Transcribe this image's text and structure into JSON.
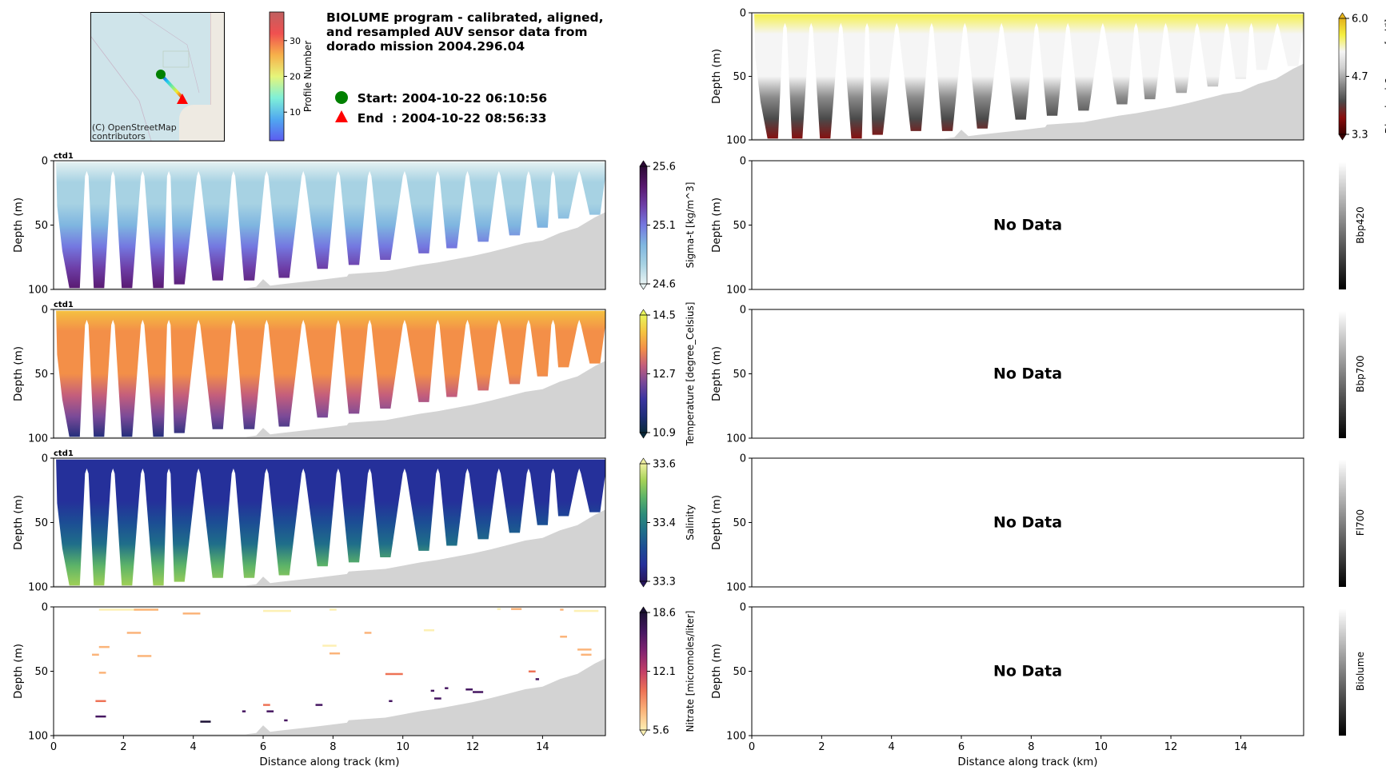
{
  "header": {
    "title_lines": [
      "BIOLUME program - calibrated, aligned,",
      "and resampled AUV sensor data from",
      "dorado mission 2004.296.04"
    ],
    "start_label": "Start: 2004-10-22 06:10:56",
    "end_label": "End  : 2004-10-22 08:56:33",
    "start_marker_color": "#008000",
    "end_marker_color": "#ff0000"
  },
  "map": {
    "attribution_lines": [
      "(C) OpenStreetMap",
      "contributors"
    ],
    "profile_colorbar": {
      "label": "Profile Number",
      "ticks": [
        "10",
        "20",
        "30"
      ],
      "range": [
        2,
        38
      ],
      "colormap": "jet"
    }
  },
  "chart_data": [
    {
      "type": "heatmap",
      "id": "sigma_t",
      "panel_tag": "ctd1",
      "variable": "Sigma-t [kg/m^3]",
      "xlabel": "",
      "ylabel": "Depth (m)",
      "xlim": [
        0,
        15.8
      ],
      "ylim": [
        100,
        0
      ],
      "yticks": [
        "0",
        "50",
        "100"
      ],
      "colorbar": {
        "label": "Sigma-t [kg/m^3]",
        "ticks": [
          "25.6",
          "25.1",
          "24.6"
        ],
        "range": [
          24.6,
          25.6
        ],
        "extend": "both",
        "stops": [
          "#e8f3f3",
          "#a7d2e3",
          "#7fb6e0",
          "#7478e0",
          "#6e3fa8",
          "#58186e",
          "#2c0a35"
        ]
      },
      "surface_value_fraction": 0.05,
      "deep_value_fraction": 0.9
    },
    {
      "type": "heatmap",
      "id": "temperature",
      "panel_tag": "ctd1",
      "variable": "Temperature [degree_Celsius]",
      "xlabel": "",
      "ylabel": "Depth (m)",
      "xlim": [
        0,
        15.8
      ],
      "ylim": [
        100,
        0
      ],
      "yticks": [
        "0",
        "50",
        "100"
      ],
      "colorbar": {
        "label": "Temperature [degree_Celsius]",
        "ticks": [
          "14.5",
          "12.7",
          "10.9"
        ],
        "range": [
          10.9,
          14.5
        ],
        "extend": "both",
        "stops": [
          "#0a2a3c",
          "#1f2d7a",
          "#3a35a0",
          "#7a4a98",
          "#c45e7c",
          "#f38f48",
          "#f5c440",
          "#e9f55a"
        ]
      },
      "surface_value_fraction": 0.82,
      "deep_value_fraction": 0.2
    },
    {
      "type": "heatmap",
      "id": "salinity",
      "panel_tag": "ctd1",
      "variable": "Salinity",
      "xlabel": "",
      "ylabel": "Depth (m)",
      "xlim": [
        0,
        15.8
      ],
      "ylim": [
        100,
        0
      ],
      "yticks": [
        "0",
        "50",
        "100"
      ],
      "colorbar": {
        "label": "Salinity",
        "ticks": [
          "33.6",
          "33.4",
          "33.3"
        ],
        "range": [
          33.3,
          33.6
        ],
        "extend": "both",
        "stops": [
          "#28175e",
          "#25309a",
          "#1c4d94",
          "#1f6e8a",
          "#2c8c7a",
          "#5cb368",
          "#a4d256",
          "#f0f0a0"
        ]
      },
      "surface_value_fraction": 0.12,
      "deep_value_fraction": 0.85
    },
    {
      "type": "scatter",
      "id": "nitrate",
      "panel_tag": "",
      "variable": "Nitrate [micromoles/liter]",
      "xlabel": "Distance along track (km)",
      "ylabel": "Depth (m)",
      "xlim": [
        0,
        15.8
      ],
      "ylim": [
        100,
        0
      ],
      "xticks": [
        "0",
        "2",
        "4",
        "6",
        "8",
        "10",
        "12",
        "14"
      ],
      "yticks": [
        "0",
        "50",
        "100"
      ],
      "colorbar": {
        "label": "Nitrate [micromoles/liter]",
        "ticks": [
          "18.6",
          "12.1",
          "5.6"
        ],
        "range": [
          5.6,
          18.6
        ],
        "extend": "both",
        "stops": [
          "#fdf0b4",
          "#fbb47a",
          "#ee7356",
          "#c33e67",
          "#832471",
          "#461761",
          "#1b1034"
        ]
      },
      "segments": [
        {
          "x0": 1.3,
          "x1": 3.0,
          "depth": 2,
          "value": 6.5
        },
        {
          "x0": 2.3,
          "x1": 3.0,
          "depth": 2,
          "value": 7.0
        },
        {
          "x0": 3.7,
          "x1": 4.2,
          "depth": 5,
          "value": 7.5
        },
        {
          "x0": 6.0,
          "x1": 6.8,
          "depth": 3,
          "value": 6.0
        },
        {
          "x0": 7.9,
          "x1": 8.1,
          "depth": 2,
          "value": 6.0
        },
        {
          "x0": 12.7,
          "x1": 12.8,
          "depth": 1.5,
          "value": 6.5
        },
        {
          "x0": 13.1,
          "x1": 13.4,
          "depth": 1.5,
          "value": 6.8
        },
        {
          "x0": 14.5,
          "x1": 14.6,
          "depth": 2,
          "value": 7.0
        },
        {
          "x0": 14.9,
          "x1": 15.6,
          "depth": 3,
          "value": 6.0
        },
        {
          "x0": 2.1,
          "x1": 2.5,
          "depth": 20,
          "value": 6.8
        },
        {
          "x0": 8.9,
          "x1": 9.1,
          "depth": 20,
          "value": 7.0
        },
        {
          "x0": 10.6,
          "x1": 10.9,
          "depth": 18,
          "value": 6.0
        },
        {
          "x0": 14.5,
          "x1": 14.7,
          "depth": 23,
          "value": 7.2
        },
        {
          "x0": 1.3,
          "x1": 1.6,
          "depth": 31,
          "value": 7.5
        },
        {
          "x0": 7.7,
          "x1": 8.1,
          "depth": 30,
          "value": 6.0
        },
        {
          "x0": 15.0,
          "x1": 15.4,
          "depth": 33,
          "value": 7.0
        },
        {
          "x0": 7.9,
          "x1": 8.2,
          "depth": 36,
          "value": 7.5
        },
        {
          "x0": 1.1,
          "x1": 1.3,
          "depth": 37,
          "value": 8.0
        },
        {
          "x0": 2.4,
          "x1": 2.8,
          "depth": 38,
          "value": 7.5
        },
        {
          "x0": 15.1,
          "x1": 15.4,
          "depth": 37,
          "value": 7.8
        },
        {
          "x0": 1.3,
          "x1": 1.5,
          "depth": 51,
          "value": 8.5
        },
        {
          "x0": 9.5,
          "x1": 10.0,
          "depth": 52,
          "value": 9.5
        },
        {
          "x0": 13.6,
          "x1": 13.8,
          "depth": 50,
          "value": 10.0
        },
        {
          "x0": 13.8,
          "x1": 13.9,
          "depth": 56,
          "value": 15.5
        },
        {
          "x0": 11.2,
          "x1": 11.3,
          "depth": 63,
          "value": 16.5
        },
        {
          "x0": 11.8,
          "x1": 12.0,
          "depth": 64,
          "value": 16.0
        },
        {
          "x0": 12.0,
          "x1": 12.3,
          "depth": 66,
          "value": 16.5
        },
        {
          "x0": 10.8,
          "x1": 10.9,
          "depth": 65,
          "value": 16.0
        },
        {
          "x0": 9.6,
          "x1": 9.7,
          "depth": 73,
          "value": 17.0
        },
        {
          "x0": 10.9,
          "x1": 11.1,
          "depth": 71,
          "value": 17.0
        },
        {
          "x0": 1.2,
          "x1": 1.5,
          "depth": 73,
          "value": 10.5
        },
        {
          "x0": 7.5,
          "x1": 7.7,
          "depth": 76,
          "value": 17.5
        },
        {
          "x0": 6.0,
          "x1": 6.2,
          "depth": 76,
          "value": 11.0
        },
        {
          "x0": 6.1,
          "x1": 6.3,
          "depth": 81,
          "value": 16.0
        },
        {
          "x0": 5.4,
          "x1": 5.5,
          "depth": 81,
          "value": 17.0
        },
        {
          "x0": 1.2,
          "x1": 1.5,
          "depth": 85,
          "value": 16.0
        },
        {
          "x0": 6.6,
          "x1": 6.7,
          "depth": 88,
          "value": 17.0
        },
        {
          "x0": 4.2,
          "x1": 4.5,
          "depth": 89,
          "value": 18.0
        }
      ]
    },
    {
      "type": "heatmap",
      "id": "dissolved_oxygen",
      "panel_tag": "",
      "variable": "Dissolved Oxygen [ml/l]",
      "xlabel": "",
      "ylabel": "Depth (m)",
      "xlim": [
        0,
        15.8
      ],
      "ylim": [
        100,
        0
      ],
      "yticks": [
        "0",
        "50",
        "100"
      ],
      "colorbar": {
        "label": "Dissolved Oxygen [ml/l]",
        "ticks": [
          "6.0",
          "4.7",
          "3.3"
        ],
        "range": [
          3.3,
          6.0
        ],
        "extend": "both",
        "stops": [
          "#3c0000",
          "#8a0c0c",
          "#4a4a4a",
          "#8a8a8a",
          "#cfcfcf",
          "#f5f5f5",
          "#f5f040",
          "#e4b21a"
        ]
      },
      "surface_value_fraction": 0.8,
      "deep_value_fraction": 0.15
    },
    {
      "type": "heatmap",
      "id": "bbp420",
      "variable": "Bbp420",
      "ylabel": "Depth (m)",
      "xlim": [
        0,
        15.8
      ],
      "ylim": [
        100,
        0
      ],
      "yticks": [
        "0",
        "50",
        "100"
      ],
      "no_data_label": "No Data",
      "colorbar": {
        "label": "Bbp420",
        "ticks": [],
        "stops": [
          "#000000",
          "#ffffff"
        ]
      }
    },
    {
      "type": "heatmap",
      "id": "bbp700",
      "variable": "Bbp700",
      "ylabel": "Depth (m)",
      "xlim": [
        0,
        15.8
      ],
      "ylim": [
        100,
        0
      ],
      "yticks": [
        "0",
        "50",
        "100"
      ],
      "no_data_label": "No Data",
      "colorbar": {
        "label": "Bbp700",
        "ticks": [],
        "stops": [
          "#000000",
          "#ffffff"
        ]
      }
    },
    {
      "type": "heatmap",
      "id": "fl700",
      "variable": "Fl700",
      "ylabel": "Depth (m)",
      "xlim": [
        0,
        15.8
      ],
      "ylim": [
        100,
        0
      ],
      "yticks": [
        "0",
        "50",
        "100"
      ],
      "no_data_label": "No Data",
      "colorbar": {
        "label": "Fl700",
        "ticks": [],
        "stops": [
          "#000000",
          "#ffffff"
        ]
      }
    },
    {
      "type": "heatmap",
      "id": "biolume",
      "variable": "Biolume",
      "xlabel": "Distance along track (km)",
      "ylabel": "Depth (m)",
      "xlim": [
        0,
        15.8
      ],
      "ylim": [
        100,
        0
      ],
      "xticks": [
        "0",
        "2",
        "4",
        "6",
        "8",
        "10",
        "12",
        "14"
      ],
      "yticks": [
        "0",
        "50",
        "100"
      ],
      "no_data_label": "No Data",
      "colorbar": {
        "label": "Biolume",
        "ticks": [],
        "stops": [
          "#000000",
          "#ffffff"
        ]
      }
    }
  ],
  "track": {
    "profile_turn_km": [
      0.6,
      1.3,
      2.1,
      3.0,
      3.6,
      4.7,
      5.6,
      6.6,
      7.7,
      8.6,
      9.5,
      10.6,
      11.4,
      12.3,
      13.2,
      14.0,
      14.6,
      15.5
    ],
    "profile_max_depth_m": [
      99,
      99,
      99,
      99,
      96,
      93,
      93,
      91,
      84,
      81,
      77,
      72,
      68,
      63,
      58,
      52,
      45,
      42
    ],
    "seafloor": {
      "x_km": [
        0,
        5.5,
        5.8,
        6.0,
        6.2,
        6.5,
        7.5,
        8.4,
        8.45,
        9.5,
        10.5,
        11.0,
        12.0,
        12.5,
        13.5,
        14.0,
        14.5,
        15.0,
        15.5,
        15.8
      ],
      "depth_m": [
        99,
        99,
        98,
        92,
        97,
        96,
        93,
        90,
        88,
        86,
        81,
        79,
        74,
        71,
        64,
        62,
        56,
        52,
        44,
        40
      ]
    },
    "seafloor_color": "#d3d3d3"
  }
}
